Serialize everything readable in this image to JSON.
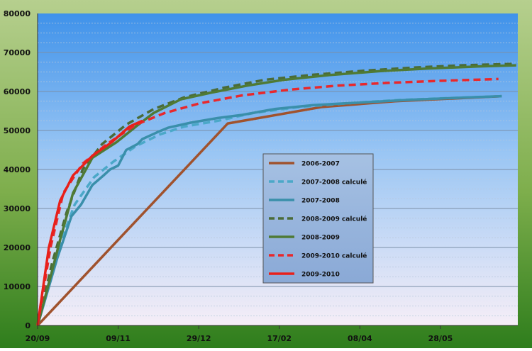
{
  "chart_data": {
    "type": "line",
    "title": "",
    "xlabel": "",
    "ylabel": "",
    "ylim": [
      0,
      80000
    ],
    "yticks": [
      0,
      10000,
      20000,
      30000,
      40000,
      50000,
      60000,
      70000,
      80000
    ],
    "xlim": [
      "09-20",
      "07-15"
    ],
    "xticks": [
      "20/09",
      "09/11",
      "29/12",
      "17/02",
      "08/04",
      "28/05"
    ],
    "grid": "horizontal",
    "legend_position": "center-right",
    "series": [
      {
        "name": "2006-2007",
        "color": "#A0522D",
        "dash": "solid",
        "points": [
          [
            "09-20",
            0
          ],
          [
            "01-16",
            51800
          ],
          [
            "03-15",
            56000
          ],
          [
            "04-30",
            57500
          ],
          [
            "07-05",
            58800
          ]
        ]
      },
      {
        "name": "2007-2008 calculé",
        "color": "#4BA8C8",
        "dash": "dashed",
        "points": [
          [
            "09-20",
            0
          ],
          [
            "10-03",
            20000
          ],
          [
            "10-13",
            31000
          ],
          [
            "10-25",
            38000
          ],
          [
            "11-06",
            42000
          ],
          [
            "11-20",
            46000
          ],
          [
            "12-05",
            49000
          ],
          [
            "12-20",
            51000
          ],
          [
            "01-10",
            52500
          ],
          [
            "02-01",
            54500
          ],
          [
            "03-01",
            56000
          ],
          [
            "04-01",
            57000
          ],
          [
            "05-01",
            57800
          ],
          [
            "06-01",
            58300
          ],
          [
            "07-05",
            58800
          ]
        ]
      },
      {
        "name": "2007-2008",
        "color": "#3A8FAA",
        "dash": "solid",
        "points": [
          [
            "09-20",
            0
          ],
          [
            "10-02",
            17000
          ],
          [
            "10-11",
            28000
          ],
          [
            "10-17",
            31000
          ],
          [
            "10-24",
            36000
          ],
          [
            "10-31",
            38500
          ],
          [
            "11-04",
            40000
          ],
          [
            "11-09",
            41000
          ],
          [
            "11-14",
            45000
          ],
          [
            "11-21",
            46500
          ],
          [
            "11-24",
            47800
          ],
          [
            "12-03",
            49500
          ],
          [
            "12-10",
            50700
          ],
          [
            "12-24",
            52000
          ],
          [
            "01-10",
            53200
          ],
          [
            "01-25",
            54000
          ],
          [
            "02-14",
            55500
          ],
          [
            "03-10",
            56500
          ],
          [
            "04-10",
            57200
          ],
          [
            "05-10",
            57900
          ],
          [
            "06-10",
            58400
          ],
          [
            "07-05",
            58800
          ]
        ]
      },
      {
        "name": "2008-2009 calculé",
        "color": "#4A6B38",
        "dash": "dashed",
        "points": [
          [
            "09-20",
            0
          ],
          [
            "09-29",
            16000
          ],
          [
            "10-08",
            29000
          ],
          [
            "10-18",
            40000
          ],
          [
            "10-30",
            46500
          ],
          [
            "11-14",
            51500
          ],
          [
            "12-01",
            55500
          ],
          [
            "12-20",
            58500
          ],
          [
            "01-14",
            61000
          ],
          [
            "02-08",
            63000
          ],
          [
            "03-10",
            64300
          ],
          [
            "04-10",
            65300
          ],
          [
            "05-10",
            66100
          ],
          [
            "06-10",
            66700
          ],
          [
            "07-14",
            67100
          ]
        ]
      },
      {
        "name": "2008-2009",
        "color": "#4F7A35",
        "dash": "solid",
        "points": [
          [
            "09-20",
            0
          ],
          [
            "09-29",
            14000
          ],
          [
            "10-04",
            22000
          ],
          [
            "10-12",
            34000
          ],
          [
            "10-24",
            43000
          ],
          [
            "11-08",
            47000
          ],
          [
            "11-20",
            51000
          ],
          [
            "12-01",
            54500
          ],
          [
            "12-18",
            58000
          ],
          [
            "01-07",
            59800
          ],
          [
            "01-28",
            61500
          ],
          [
            "02-20",
            63000
          ],
          [
            "03-20",
            64200
          ],
          [
            "04-20",
            65200
          ],
          [
            "05-20",
            65900
          ],
          [
            "06-20",
            66400
          ],
          [
            "07-14",
            66700
          ]
        ]
      },
      {
        "name": "2009-2010 calculé",
        "color": "#E8282C",
        "dash": "dashed",
        "points": [
          [
            "09-20",
            0
          ],
          [
            "09-28",
            20000
          ],
          [
            "10-06",
            34000
          ],
          [
            "10-18",
            41500
          ],
          [
            "11-02",
            46500
          ],
          [
            "11-20",
            51500
          ],
          [
            "12-08",
            54500
          ],
          [
            "12-30",
            57000
          ],
          [
            "01-25",
            59000
          ],
          [
            "02-24",
            60500
          ],
          [
            "03-25",
            61500
          ],
          [
            "04-25",
            62200
          ],
          [
            "05-25",
            62700
          ],
          [
            "07-03",
            63200
          ]
        ]
      },
      {
        "name": "2009-2010",
        "color": "#E8201A",
        "dash": "solid",
        "points": [
          [
            "09-20",
            0
          ],
          [
            "09-27",
            20000
          ],
          [
            "10-04",
            32000
          ],
          [
            "10-12",
            38500
          ],
          [
            "10-24",
            43500
          ],
          [
            "11-05",
            47000
          ],
          [
            "11-16",
            51000
          ],
          [
            "11-24",
            52500
          ]
        ]
      }
    ]
  }
}
